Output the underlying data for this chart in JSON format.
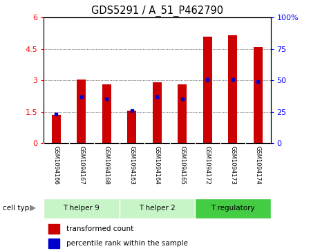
{
  "title": "GDS5291 / A_51_P462790",
  "samples": [
    "GSM1094166",
    "GSM1094167",
    "GSM1094168",
    "GSM1094163",
    "GSM1094164",
    "GSM1094165",
    "GSM1094172",
    "GSM1094173",
    "GSM1094174"
  ],
  "red_values": [
    1.35,
    3.05,
    2.8,
    1.55,
    2.9,
    2.82,
    5.1,
    5.15,
    4.6
  ],
  "blue_values": [
    1.4,
    2.2,
    2.1,
    1.55,
    2.2,
    2.1,
    3.05,
    3.05,
    2.95
  ],
  "cell_types": [
    {
      "label": "T helper 9",
      "start": 0,
      "end": 3
    },
    {
      "label": "T helper 2",
      "start": 3,
      "end": 6
    },
    {
      "label": "T regulatory",
      "start": 6,
      "end": 9
    }
  ],
  "cell_type_colors": [
    "#c8f5c8",
    "#c8f5c8",
    "#44cc44"
  ],
  "ylim_left": [
    0,
    6
  ],
  "ylim_right": [
    0,
    100
  ],
  "yticks_left": [
    0,
    1.5,
    3.0,
    4.5,
    6.0
  ],
  "yticks_right": [
    0,
    25,
    50,
    75,
    100
  ],
  "bar_color": "#cc0000",
  "dot_color": "#0000cc",
  "sample_bg_color": "#c8c8c8",
  "title_fontsize": 10.5,
  "tick_fontsize": 8,
  "legend_fontsize": 7.5
}
